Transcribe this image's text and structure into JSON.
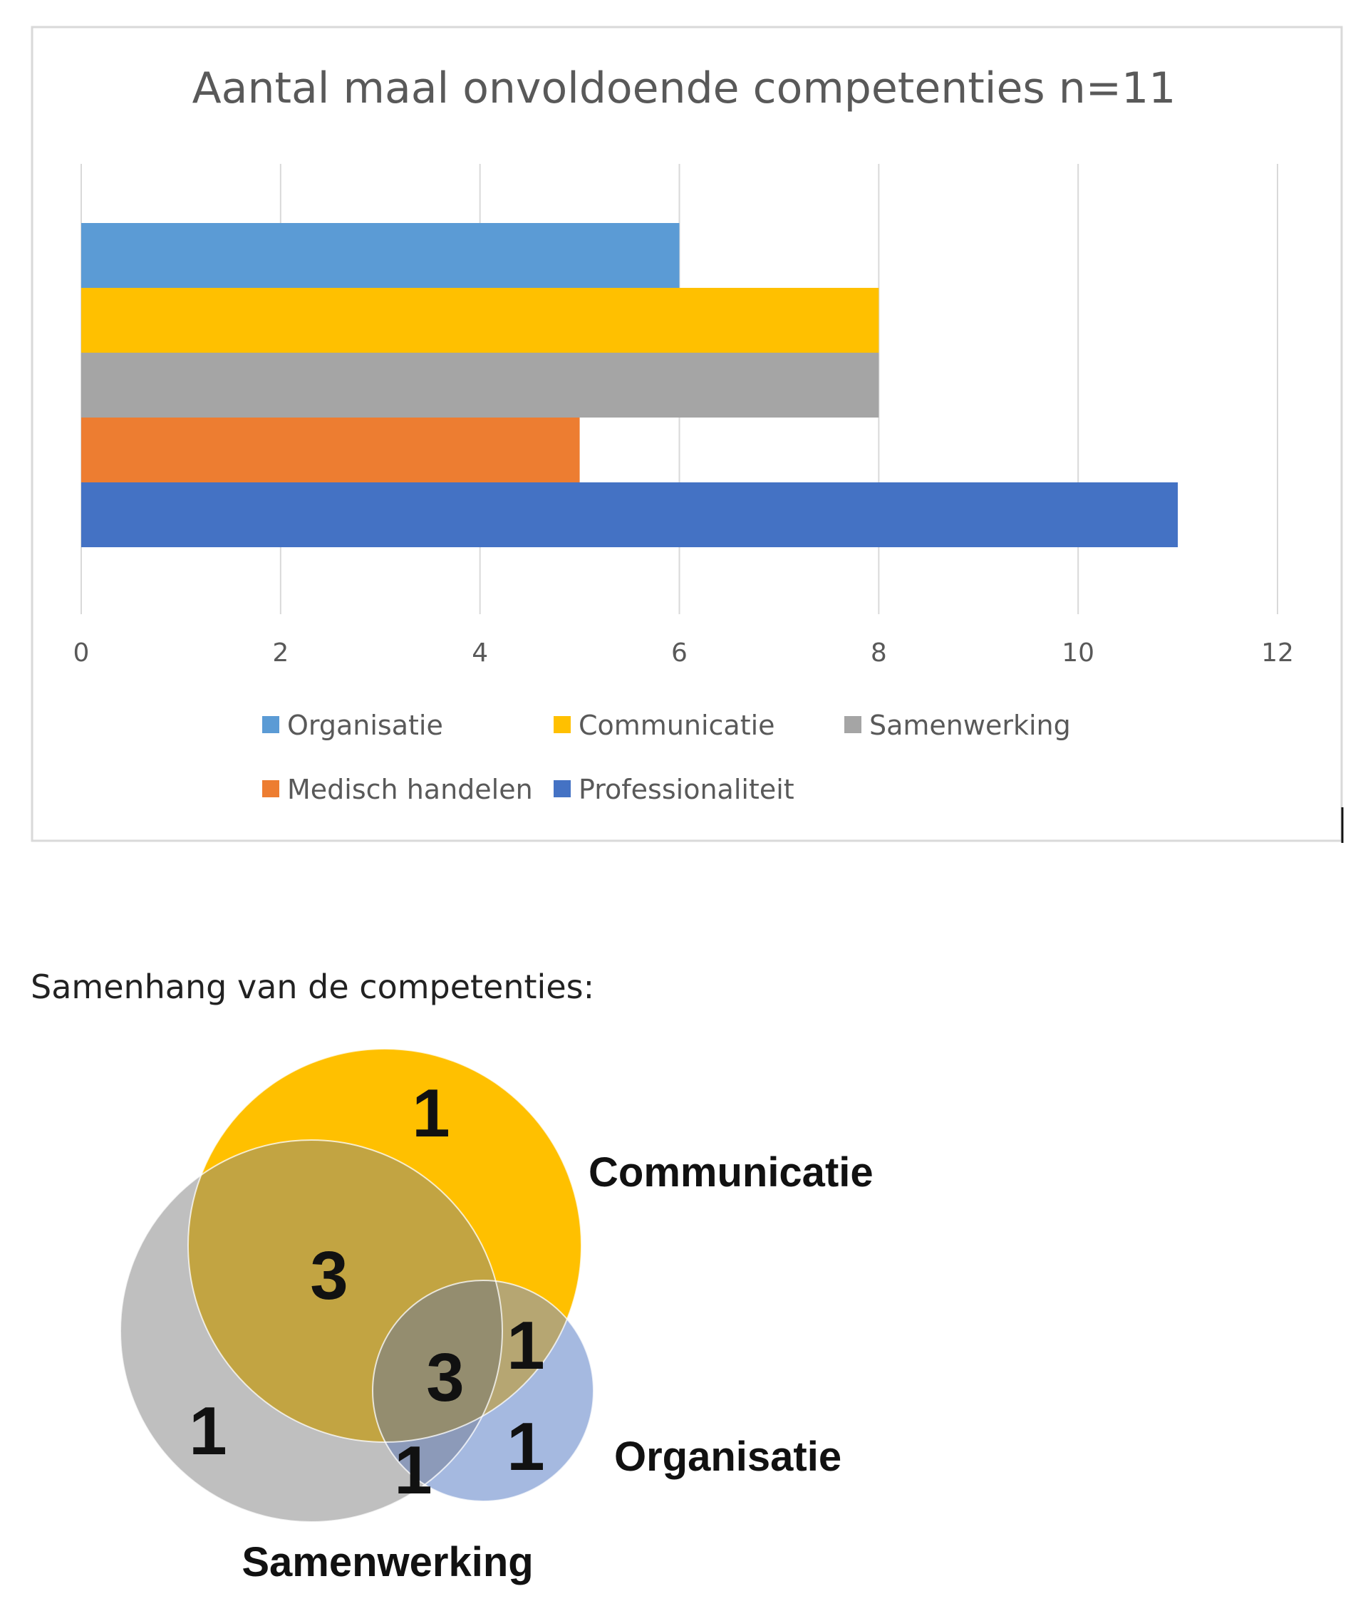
{
  "chart_data": {
    "type": "bar",
    "orientation": "horizontal",
    "title": "Aantal maal onvoldoende competenties n=11",
    "xlabel": "",
    "ylabel": "",
    "xlim": [
      0,
      12
    ],
    "x_ticks": [
      "0",
      "2",
      "4",
      "6",
      "8",
      "10",
      "12"
    ],
    "grid": "vertical",
    "legend_position": "bottom",
    "series": [
      {
        "name": "Organisatie",
        "values": [
          6
        ],
        "color": "#5B9BD5"
      },
      {
        "name": "Communicatie",
        "values": [
          8
        ],
        "color": "#FFC000"
      },
      {
        "name": "Samenwerking",
        "values": [
          8
        ],
        "color": "#A5A5A5"
      },
      {
        "name": "Medisch handelen",
        "values": [
          5
        ],
        "color": "#ED7D31"
      },
      {
        "name": "Professionaliteit",
        "values": [
          11
        ],
        "color": "#4472C4"
      }
    ]
  },
  "section_heading": "Samenhang van de competenties:",
  "venn": {
    "sets": [
      {
        "name": "Communicatie",
        "color": "#FFC000"
      },
      {
        "name": "Samenwerking",
        "color": "#BFBFBF"
      },
      {
        "name": "Organisatie",
        "color": "#A5B9E0"
      }
    ],
    "regions": [
      {
        "sets": [
          "Communicatie"
        ],
        "count": "1"
      },
      {
        "sets": [
          "Communicatie",
          "Samenwerking"
        ],
        "count": "3"
      },
      {
        "sets": [
          "Communicatie",
          "Samenwerking",
          "Organisatie"
        ],
        "count": "3"
      },
      {
        "sets": [
          "Communicatie",
          "Organisatie"
        ],
        "count": "1"
      },
      {
        "sets": [
          "Samenwerking"
        ],
        "count": "1"
      },
      {
        "sets": [
          "Samenwerking",
          "Organisatie"
        ],
        "count": "1"
      },
      {
        "sets": [
          "Organisatie"
        ],
        "count": "1"
      }
    ]
  }
}
